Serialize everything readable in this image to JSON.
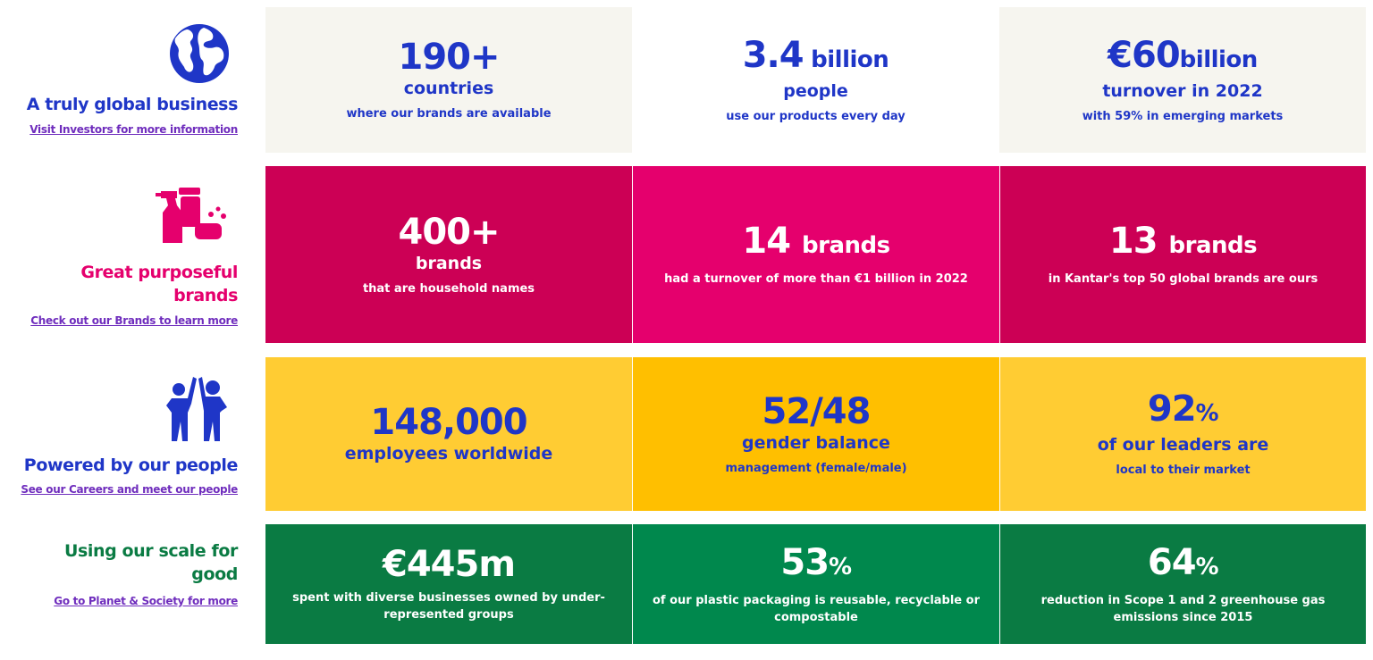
{
  "colors": {
    "blue": "#1f36c7",
    "magenta": "#e5006d",
    "crimson": "#cc0055",
    "green": "#0a7b43",
    "green_light": "#00884d",
    "yellow": "#ffcc33",
    "amber": "#ffbf00",
    "cream": "#f6f5ef",
    "link_purple": "#6f2dbd"
  },
  "rows": [
    {
      "title": "A truly global business",
      "link": "Visit Investors for more information",
      "icon": "globe-icon",
      "tiles": [
        {
          "big": "190+",
          "mid": "countries",
          "small": "where our brands are available"
        },
        {
          "big": "3.4",
          "unit": " billion",
          "mid": "people",
          "small": "use our products every day"
        },
        {
          "big": "€60",
          "unit": "billion",
          "mid": "turnover in 2022",
          "small": "with 59% in emerging markets"
        }
      ]
    },
    {
      "title_line1": "Great purposeful",
      "title_line2": "brands",
      "link": "Check out our Brands to learn more",
      "icon": "household-products-icon",
      "tiles": [
        {
          "big": "400+",
          "mid": "brands",
          "small": "that are household names"
        },
        {
          "big": "14",
          "unit": "brands",
          "small": "had a turnover of more than €1 billion in 2022"
        },
        {
          "big": "13",
          "unit": "brands",
          "small": "in Kantar's top 50 global brands are ours"
        }
      ]
    },
    {
      "title": "Powered by our people",
      "link": "See our Careers and meet our people",
      "icon": "high-five-people-icon",
      "tiles": [
        {
          "big": "148,000",
          "mid": "employees worldwide"
        },
        {
          "big": "52/48",
          "mid": "gender balance",
          "small": "management (female/male)"
        },
        {
          "big": "92",
          "unit": "%",
          "mid": "of our leaders are",
          "small": "local to their market"
        }
      ]
    },
    {
      "title_line1": "Using our scale for",
      "title_line2": "good",
      "link": "Go to Planet & Society for more",
      "tiles": [
        {
          "big": "€445m",
          "small_line1": "spent with diverse businesses owned by under-",
          "small_line2": "represented groups"
        },
        {
          "big": "53",
          "unit": "%",
          "small_line1": "of our plastic packaging is reusable, recyclable or",
          "small_line2": "compostable"
        },
        {
          "big": "64",
          "unit": "%",
          "small_line1": "reduction in Scope 1 and 2 greenhouse gas",
          "small_line2": "emissions since 2015"
        }
      ]
    }
  ]
}
